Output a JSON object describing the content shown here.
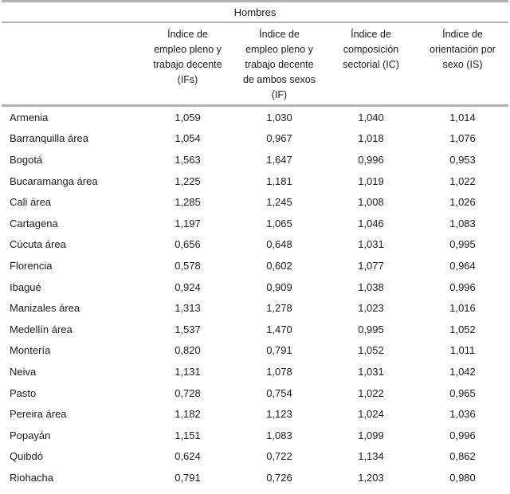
{
  "style": {
    "rule_color": "#b2b2b2",
    "text_color": "#1c1c1c",
    "background": "#ffffff"
  },
  "chart_data": {
    "type": "table",
    "title": "Hombres",
    "row_header_column": "",
    "columns": [
      "Índice de empleo pleno y trabajo decente (IFs)",
      "Índice de empleo pleno y trabajo decente de ambos sexos (IF)",
      "Índice de composición sectorial (IC)",
      "Índice de orientación por sexo (IS)"
    ],
    "rows": [
      {
        "label": "Armenia",
        "values": [
          "1,059",
          "1,030",
          "1,040",
          "1,014"
        ]
      },
      {
        "label": "Barranquilla área",
        "values": [
          "1,054",
          "0,967",
          "1,018",
          "1,076"
        ]
      },
      {
        "label": "Bogotá",
        "values": [
          "1,563",
          "1,647",
          "0,996",
          "0,953"
        ]
      },
      {
        "label": "Bucaramanga área",
        "values": [
          "1,225",
          "1,181",
          "1,019",
          "1,022"
        ]
      },
      {
        "label": "Cali área",
        "values": [
          "1,285",
          "1,245",
          "1,008",
          "1,026"
        ]
      },
      {
        "label": "Cartagena",
        "values": [
          "1,197",
          "1,065",
          "1,046",
          "1,083"
        ]
      },
      {
        "label": "Cúcuta área",
        "values": [
          "0,656",
          "0,648",
          "1,031",
          "0,995"
        ]
      },
      {
        "label": "Florencia",
        "values": [
          "0,578",
          "0,602",
          "1,077",
          "0,964"
        ]
      },
      {
        "label": "Ibagué",
        "values": [
          "0,924",
          "0,909",
          "1,038",
          "0,996"
        ]
      },
      {
        "label": "Manizales área",
        "values": [
          "1,313",
          "1,278",
          "1,023",
          "1,016"
        ]
      },
      {
        "label": "Medellín área",
        "values": [
          "1,537",
          "1,470",
          "0,995",
          "1,052"
        ]
      },
      {
        "label": "Montería",
        "values": [
          "0,820",
          "0,791",
          "1,052",
          "1,011"
        ]
      },
      {
        "label": "Neiva",
        "values": [
          "1,131",
          "1,078",
          "1,031",
          "1,042"
        ]
      },
      {
        "label": "Pasto",
        "values": [
          "0,728",
          "0,754",
          "1,022",
          "0,965"
        ]
      },
      {
        "label": "Pereira área",
        "values": [
          "1,182",
          "1,123",
          "1,024",
          "1,036"
        ]
      },
      {
        "label": "Popayán",
        "values": [
          "1,151",
          "1,083",
          "1,099",
          "0,996"
        ]
      },
      {
        "label": "Quibdó",
        "values": [
          "0,624",
          "0,722",
          "1,134",
          "0,862"
        ]
      },
      {
        "label": "Riohacha",
        "values": [
          "0,791",
          "0,726",
          "1,203",
          "0,980"
        ]
      }
    ]
  }
}
